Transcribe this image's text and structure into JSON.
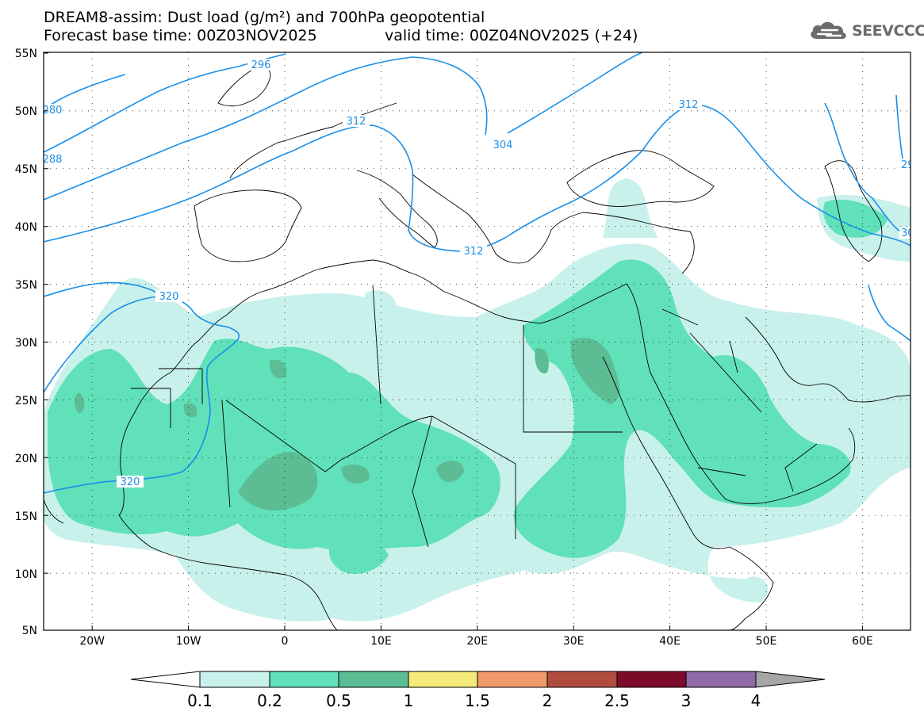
{
  "header": {
    "line1": "DREAM8-assim: Dust load (g/m²) and 700hPa geopotential",
    "line2": "Forecast base time: 00Z03NOV2025",
    "line3": "valid time: 00Z04NOV2025 (+24)"
  },
  "logo": {
    "text": "SEEVCCC",
    "icon": "cloud-icon"
  },
  "map": {
    "lat_labels": [
      "55N",
      "50N",
      "45N",
      "40N",
      "35N",
      "30N",
      "25N",
      "20N",
      "15N",
      "10N",
      "5N"
    ],
    "lon_labels": [
      "20W",
      "10W",
      "0",
      "10E",
      "20E",
      "30E",
      "40E",
      "50E",
      "60E"
    ],
    "contour_labels": [
      "296",
      "280",
      "288",
      "312",
      "304",
      "312",
      "312",
      "320",
      "320",
      "29",
      "30"
    ]
  },
  "colorbar": {
    "ticks": [
      "0.1",
      "0.2",
      "0.5",
      "1",
      "1.5",
      "2",
      "2.5",
      "3",
      "4"
    ],
    "colors": [
      "#c9f1ec",
      "#60e1b9",
      "#5cbd95",
      "#f5e97a",
      "#f09a6b",
      "#b04c3e",
      "#7c0c2a",
      "#8e6aa6",
      "#a6a6a6"
    ]
  },
  "colors": {
    "dust_low": "#c9f1ec",
    "dust_mid": "#60e1b9",
    "dust_high": "#5cbd95",
    "geopotential": "#1a8fe8",
    "borders": "#000000"
  }
}
